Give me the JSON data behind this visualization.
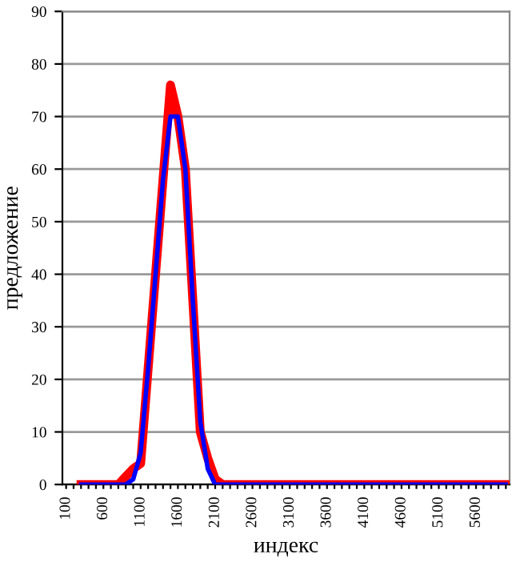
{
  "chart_data": {
    "type": "line",
    "xlabel": "индекс",
    "ylabel": "предложение",
    "categories": [
      "100",
      null,
      null,
      null,
      null,
      "600",
      null,
      null,
      null,
      null,
      "1100",
      null,
      null,
      null,
      null,
      "1600",
      null,
      null,
      null,
      null,
      "2100",
      null,
      null,
      null,
      null,
      "2600",
      null,
      null,
      null,
      null,
      "3100",
      null,
      null,
      null,
      null,
      "3600",
      null,
      null,
      null,
      null,
      "4100",
      null,
      null,
      null,
      null,
      "4600",
      null,
      null,
      null,
      null,
      "5100",
      null,
      null,
      null,
      null,
      "5600",
      null,
      null,
      null,
      null
    ],
    "series": [
      {
        "color": "#0000ff",
        "values": [
          null,
          null,
          0,
          0,
          0,
          0,
          0,
          0,
          0,
          1,
          6,
          22,
          40,
          58,
          70,
          70,
          60,
          35,
          12,
          3,
          0,
          0,
          0,
          0,
          0,
          0,
          0,
          0,
          0,
          0,
          0,
          0,
          0,
          0,
          0,
          0,
          0,
          0,
          0,
          0,
          0,
          0,
          0,
          0,
          0,
          0,
          0,
          0,
          0,
          0,
          0,
          0,
          0,
          0,
          0,
          0,
          0,
          0,
          0,
          0
        ]
      },
      {
        "color": "#ff0000",
        "values": [
          null,
          null,
          0,
          0,
          0,
          0,
          0,
          0,
          1.5,
          3,
          4,
          22,
          40,
          58,
          76,
          70,
          60,
          35,
          10,
          5,
          1,
          0,
          0,
          0,
          0,
          0,
          0,
          0,
          0,
          0,
          0,
          0,
          0,
          0,
          0,
          0,
          0,
          0,
          0,
          0,
          0,
          0,
          0,
          0,
          0,
          0,
          0,
          0,
          0,
          0,
          0,
          0,
          0,
          0,
          0,
          0,
          0,
          0,
          0,
          0
        ]
      }
    ],
    "ylim": [
      0,
      90
    ],
    "yticks": [
      0,
      10,
      20,
      30,
      40,
      50,
      60,
      70,
      80,
      90
    ],
    "grid": "y",
    "legend": false,
    "marker": "none",
    "line_style": "solid"
  }
}
